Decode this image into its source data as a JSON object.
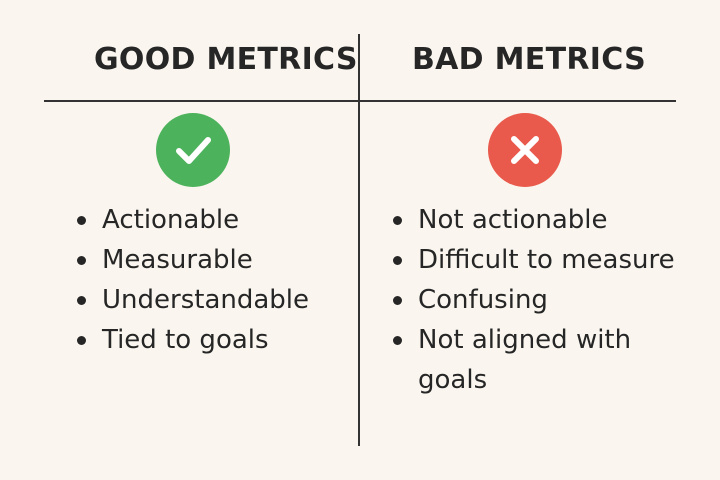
{
  "good": {
    "title": "GOOD METRICS",
    "icon": "check-icon",
    "color": "#4db25c",
    "items": [
      "Actionable",
      "Measurable",
      "Understandable",
      "Tied to goals"
    ]
  },
  "bad": {
    "title": "BAD METRICS",
    "icon": "x-icon",
    "color": "#e95a4c",
    "items": [
      "Not actionable",
      "Difficult to measure",
      "Confusing",
      "Not aligned with goals"
    ]
  }
}
